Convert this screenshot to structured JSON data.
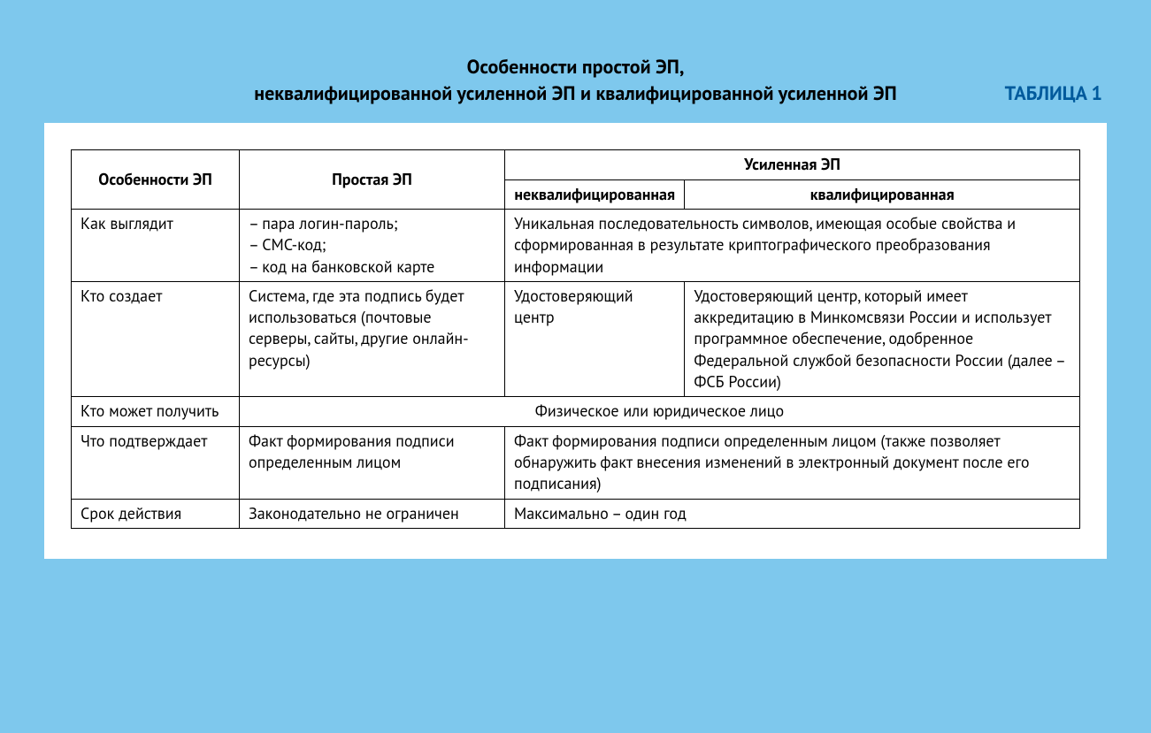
{
  "colors": {
    "page_bg": "#7ec8ed",
    "accent": "#005a9c",
    "card_bg": "#ffffff",
    "border": "#000000",
    "text": "#000000"
  },
  "label": "ТАБЛИЦА 1",
  "title_line1": "Особенности простой ЭП,",
  "title_line2": "неквалифицированной усиленной ЭП и квалифицированной усиленной ЭП",
  "header": {
    "features": "Особенности ЭП",
    "simple": "Простая ЭП",
    "enhanced": "Усиленная ЭП",
    "unqualified": "неквалифицированная",
    "qualified": "квалифицированная"
  },
  "rows": {
    "r1": {
      "feature": "Как выглядит",
      "simple": "– пара логин-пароль;\n– СМС-код;\n– код на банковской карте",
      "enhanced_merged": "Уникальная последовательность символов, имеющая особые свойства и сформированная в результате криптографического преобразования информации"
    },
    "r2": {
      "feature": "Кто создает",
      "simple": "Система, где эта подпись будет использоваться (почтовые серверы, сайты, другие онлайн-ресурсы)",
      "unqualified": "Удостоверяющий центр",
      "qualified": "Удостоверяющий центр, который имеет аккредитацию в Минкомсвязи России и использует программное обеспечение, одобренное Федеральной службой безопасности России (далее – ФСБ России)"
    },
    "r3": {
      "feature": "Кто может получить",
      "all_merged": "Физическое или юридическое лицо"
    },
    "r4": {
      "feature": "Что подтверждает",
      "simple": "Факт формирования подписи определенным лицом",
      "enhanced_merged": "Факт формирования подписи определенным лицом (также позволяет обнаружить факт внесения изменений в электронный документ после его подписания)"
    },
    "r5": {
      "feature": "Срок действия",
      "simple": "Законодательно не ограничен",
      "enhanced_merged": "Максимально – один год"
    }
  }
}
